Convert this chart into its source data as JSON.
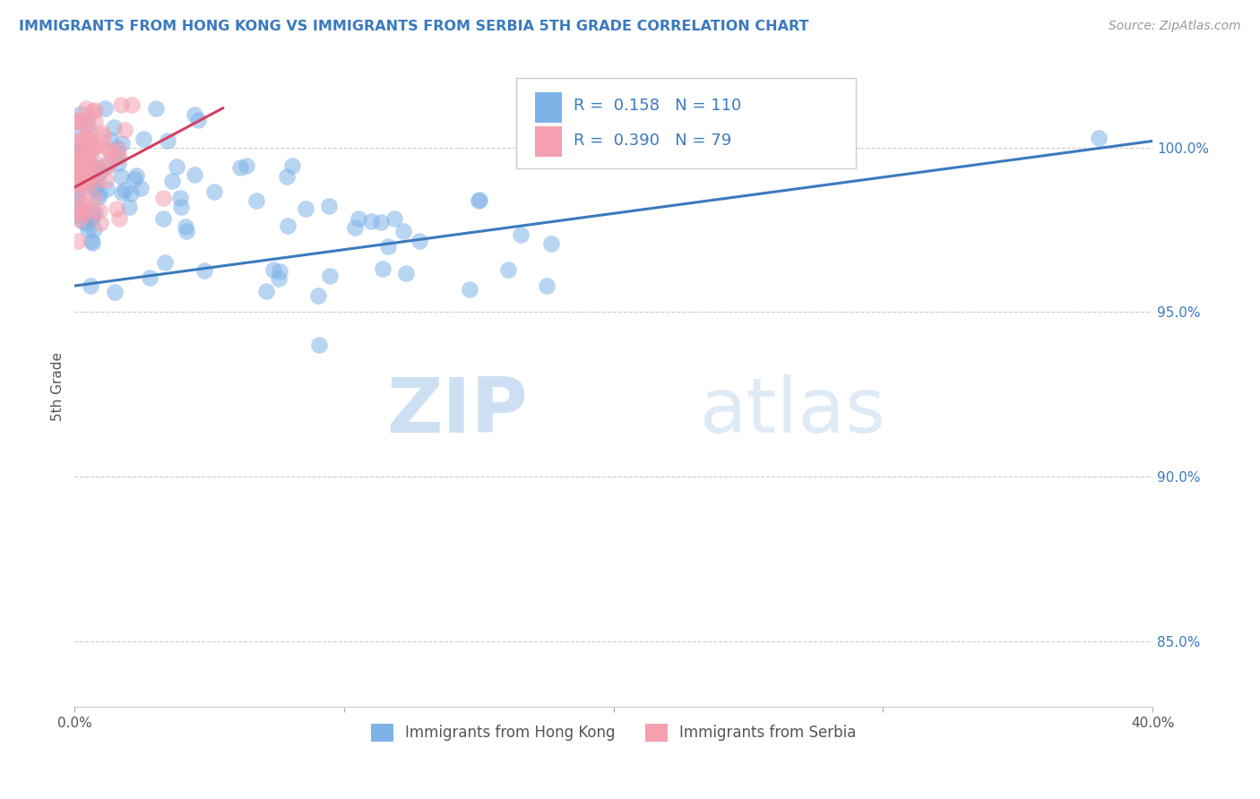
{
  "title": "IMMIGRANTS FROM HONG KONG VS IMMIGRANTS FROM SERBIA 5TH GRADE CORRELATION CHART",
  "source": "Source: ZipAtlas.com",
  "ylabel_label": "5th Grade",
  "xlim": [
    0.0,
    40.0
  ],
  "ylim": [
    83.0,
    102.5
  ],
  "yticks": [
    85.0,
    90.0,
    95.0,
    100.0
  ],
  "ytick_labels": [
    "85.0%",
    "90.0%",
    "95.0%",
    "100.0%"
  ],
  "xtick_labels": [
    "0.0%",
    "",
    "",
    "",
    "40.0%"
  ],
  "legend1_label": "Immigrants from Hong Kong",
  "legend2_label": "Immigrants from Serbia",
  "r1": 0.158,
  "n1": 110,
  "r2": 0.39,
  "n2": 79,
  "color_hk": "#7eb3e8",
  "color_serbia": "#f4a0b0",
  "trendline_hk": "#3a7abf",
  "trendline_serbia": "#d44060",
  "watermark_zip": "ZIP",
  "watermark_atlas": "atlas",
  "background_color": "#ffffff",
  "title_color": "#3a7abf",
  "source_color": "#999999",
  "tick_color": "#3a7abf",
  "hk_trend_x": [
    0.0,
    40.0
  ],
  "hk_trend_y": [
    95.8,
    100.2
  ],
  "serbia_trend_x": [
    0.0,
    5.5
  ],
  "serbia_trend_y": [
    98.8,
    101.2
  ]
}
